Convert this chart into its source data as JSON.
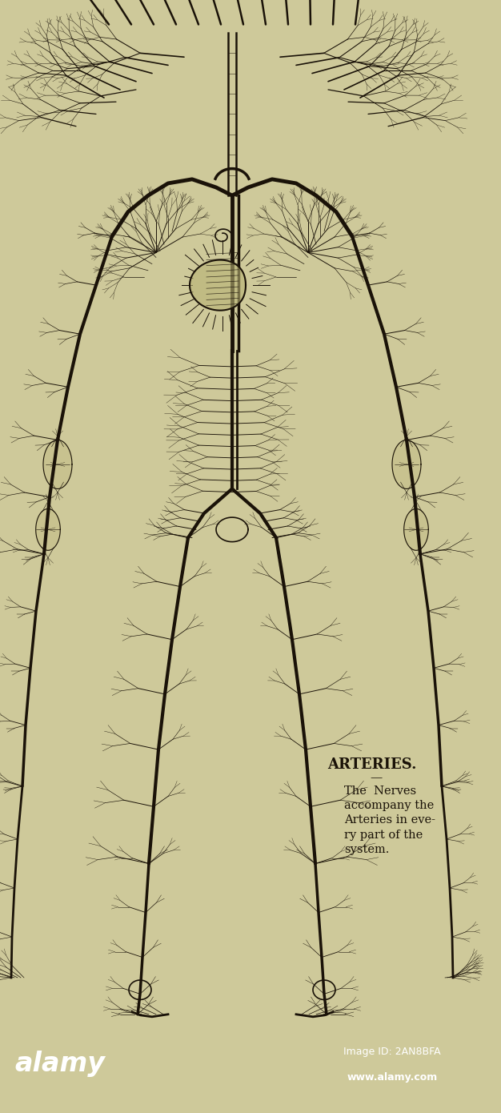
{
  "bg_color_main": "#cec99a",
  "bg_color_bottom": "#111111",
  "title": "ARTERIES.",
  "divider": "—",
  "body_text_line1": "The  Nerves",
  "body_text_line2": "accompany the",
  "body_text_line3": "Arteries in eve-",
  "body_text_line4": "ry part of the",
  "body_text_line5": "system.",
  "alamy_text": "alamy",
  "image_id_text": "Image ID: 2AN8BFA",
  "website_text": "www.alamy.com",
  "fig_width": 6.26,
  "fig_height": 13.9,
  "dpi": 100,
  "line_color": "#1a1208",
  "text_color": "#1a1208"
}
